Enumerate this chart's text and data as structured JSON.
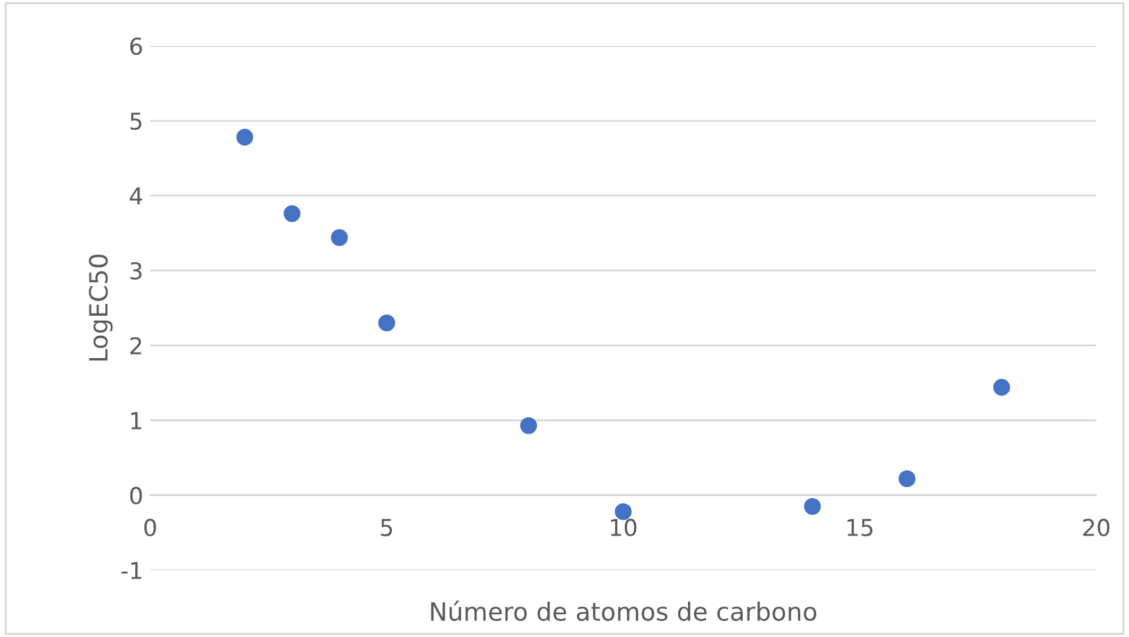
{
  "chart_data": {
    "type": "scatter",
    "xlabel": "Número de atomos de carbono",
    "ylabel": "LogEC50",
    "x": [
      2,
      3,
      4,
      5,
      8,
      10,
      14,
      16,
      18
    ],
    "series": [
      {
        "color": "#4472c4",
        "values": [
          4.78,
          3.76,
          3.44,
          2.3,
          0.93,
          -0.22,
          -0.15,
          0.22,
          1.44
        ]
      }
    ],
    "xlim": [
      0,
      20
    ],
    "ylim": [
      -1,
      6
    ],
    "xticks": [
      0,
      5,
      10,
      15,
      20
    ],
    "yticks": [
      -1,
      0,
      1,
      2,
      3,
      4,
      5,
      6
    ],
    "grid": "y",
    "marker": "circle",
    "legend": false
  }
}
